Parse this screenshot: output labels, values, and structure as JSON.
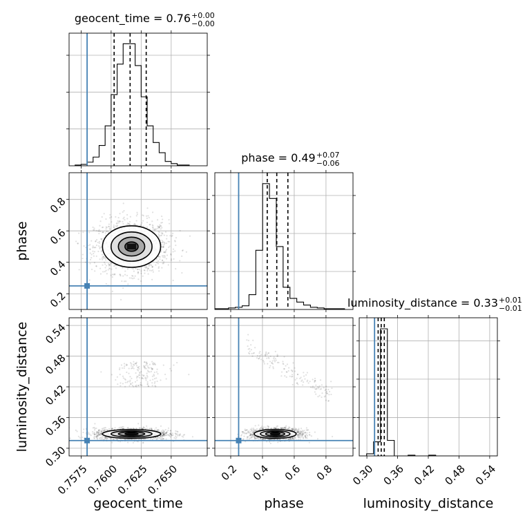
{
  "chart_data": {
    "type": "corner",
    "parameters": [
      "geocent_time",
      "phase",
      "luminosity_distance"
    ],
    "truth_color": "#4682b4",
    "truths": {
      "geocent_time": 0.758,
      "phase": 0.25,
      "luminosity_distance": 0.315
    },
    "titles": {
      "geocent_time": {
        "main": "geocent_time = 0.76",
        "plus": "+0.00",
        "minus": "−0.00"
      },
      "phase": {
        "main": "phase = 0.49",
        "plus": "+0.07",
        "minus": "−0.06"
      },
      "luminosity_distance": {
        "main": "luminosity_distance = 0.33",
        "plus": "+0.01",
        "minus": "−0.01"
      }
    },
    "axes": {
      "geocent_time": {
        "range": [
          0.7565,
          0.768
        ],
        "ticks": [
          0.7575,
          0.76,
          0.7625,
          0.765
        ],
        "tick_labels": [
          "0.7575",
          "0.7600",
          "0.7625",
          "0.7650"
        ]
      },
      "phase": {
        "range": [
          0.1,
          0.97
        ],
        "ticks": [
          0.2,
          0.4,
          0.6,
          0.8
        ],
        "tick_labels": [
          "0.2",
          "0.4",
          "0.6",
          "0.8"
        ]
      },
      "luminosity_distance": {
        "range": [
          0.285,
          0.555
        ],
        "ticks": [
          0.3,
          0.36,
          0.42,
          0.48,
          0.54
        ],
        "tick_labels": [
          "0.30",
          "0.36",
          "0.42",
          "0.48",
          "0.54"
        ]
      }
    },
    "histograms": {
      "geocent_time": {
        "bin_start": 0.757,
        "bin_width": 0.0005,
        "counts": [
          1,
          2,
          5,
          12,
          28,
          55,
          98,
          140,
          168,
          168,
          138,
          95,
          55,
          32,
          18,
          6,
          3,
          1,
          1
        ],
        "quantiles": [
          0.76025,
          0.76158,
          0.76292
        ]
      },
      "phase": {
        "bin_start": 0.1,
        "bin_width": 0.043,
        "counts": [
          1,
          1,
          2,
          3,
          5,
          20,
          80,
          170,
          150,
          85,
          30,
          15,
          10,
          6,
          3,
          2,
          1,
          1,
          1
        ],
        "quantiles": [
          0.43,
          0.49,
          0.56
        ]
      },
      "luminosity_distance": {
        "bin_start": 0.286,
        "bin_width": 0.0135,
        "counts": [
          0,
          3,
          20,
          180,
          22,
          0,
          0,
          1,
          0,
          0,
          1,
          0,
          0,
          0,
          0,
          0,
          0,
          0,
          0,
          0
        ],
        "quantiles": [
          0.322,
          0.328,
          0.334
        ]
      }
    },
    "contour_centers": {
      "phase_vs_geocent_time": {
        "x": 0.7617,
        "y": 0.5,
        "sx": 0.0011,
        "sy": 0.06
      },
      "luminosity_distance_vs_geocent_time": {
        "x": 0.7617,
        "y": 0.328,
        "sx": 0.0011,
        "sy": 0.004
      },
      "luminosity_distance_vs_phase": {
        "x": 0.48,
        "y": 0.328,
        "sx": 0.06,
        "sy": 0.004
      }
    }
  }
}
